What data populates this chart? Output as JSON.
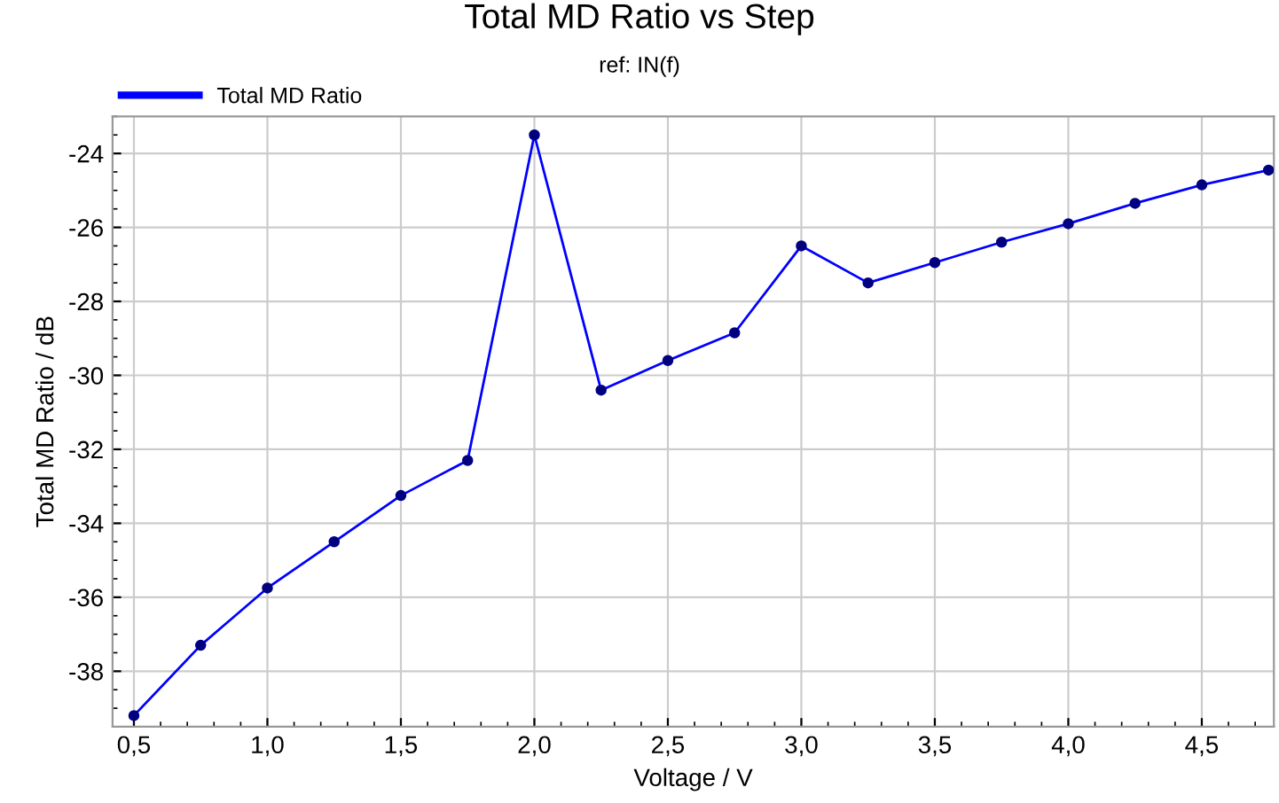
{
  "chart_data": {
    "type": "line",
    "title": "Total MD Ratio vs Step",
    "subtitle": "ref: IN(f)",
    "xlabel": "Voltage / V",
    "ylabel": "Total MD Ratio / dB",
    "x": [
      0.5,
      0.75,
      1.0,
      1.25,
      1.5,
      1.75,
      2.0,
      2.25,
      2.5,
      2.75,
      3.0,
      3.25,
      3.5,
      3.75,
      4.0,
      4.25,
      4.5,
      4.75
    ],
    "series": [
      {
        "name": "Total MD Ratio",
        "color": "#0000ff",
        "values": [
          -39.2,
          -37.3,
          -35.75,
          -34.5,
          -33.25,
          -32.3,
          -23.5,
          -30.4,
          -29.6,
          -28.85,
          -26.5,
          -27.5,
          -26.95,
          -26.4,
          -25.9,
          -25.35,
          -24.85,
          -24.45
        ]
      }
    ],
    "xlim": [
      0.42,
      4.77
    ],
    "ylim": [
      -39.5,
      -23
    ],
    "xticks": [
      {
        "value": 0.5,
        "label": "0,5"
      },
      {
        "value": 1.0,
        "label": "1,0"
      },
      {
        "value": 1.5,
        "label": "1,5"
      },
      {
        "value": 2.0,
        "label": "2,0"
      },
      {
        "value": 2.5,
        "label": "2,5"
      },
      {
        "value": 3.0,
        "label": "3,0"
      },
      {
        "value": 3.5,
        "label": "3,5"
      },
      {
        "value": 4.0,
        "label": "4,0"
      },
      {
        "value": 4.5,
        "label": "4,5"
      }
    ],
    "yticks": [
      -38,
      -36,
      -34,
      -32,
      -30,
      -28,
      -26,
      -24
    ],
    "grid": true,
    "legend": "top left",
    "marker": "circle",
    "line_style": "solid"
  }
}
